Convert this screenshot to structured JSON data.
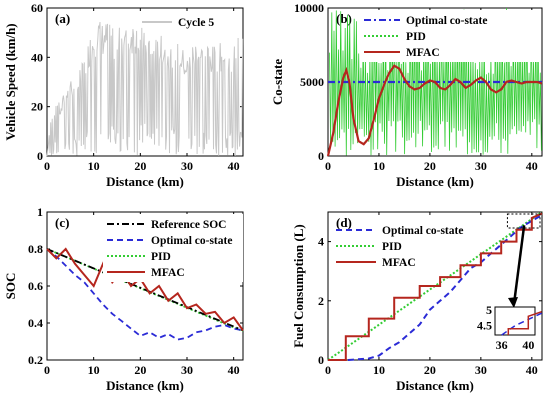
{
  "colors": {
    "speed": "#c8c8c8",
    "opt": "#2b2bd6",
    "pid": "#33cc33",
    "mfac": "#b5261e",
    "ref": "#000000"
  },
  "chart_data": [
    {
      "id": "a",
      "type": "line",
      "panel_label": "(a)",
      "xlabel": "Distance (km)",
      "ylabel": "Vehicle Speed (km/h)",
      "xlim": [
        0,
        42
      ],
      "ylim": [
        0,
        60
      ],
      "xticks": [
        0,
        10,
        20,
        30,
        40
      ],
      "yticks": [
        0,
        20,
        40,
        60
      ],
      "legend_position": "top-right",
      "series": [
        {
          "name": "Cycle 5",
          "color": "#c8c8c8",
          "envelope": [
            [
              0,
              0
            ],
            [
              1,
              18
            ],
            [
              2,
              24
            ],
            [
              3,
              20
            ],
            [
              4,
              30
            ],
            [
              5,
              32
            ],
            [
              6,
              28
            ],
            [
              7,
              35
            ],
            [
              8,
              40
            ],
            [
              9,
              48
            ],
            [
              10,
              52
            ],
            [
              11,
              56
            ],
            [
              12,
              54
            ],
            [
              13,
              55
            ],
            [
              14,
              52
            ],
            [
              15,
              50
            ],
            [
              16,
              54
            ],
            [
              17,
              52
            ],
            [
              18,
              55
            ],
            [
              19,
              55
            ],
            [
              20,
              52
            ],
            [
              21,
              54
            ],
            [
              22,
              50
            ],
            [
              23,
              48
            ],
            [
              24,
              48
            ],
            [
              25,
              50
            ],
            [
              26,
              46
            ],
            [
              27,
              48
            ],
            [
              28,
              46
            ],
            [
              29,
              44
            ],
            [
              30,
              40
            ],
            [
              31,
              45
            ],
            [
              32,
              48
            ],
            [
              33,
              45
            ],
            [
              34,
              48
            ],
            [
              35,
              44
            ],
            [
              36,
              45
            ],
            [
              37,
              46
            ],
            [
              38,
              44
            ],
            [
              39,
              42
            ],
            [
              40,
              44
            ],
            [
              41,
              52
            ],
            [
              42,
              50
            ]
          ]
        }
      ]
    },
    {
      "id": "b",
      "type": "line",
      "panel_label": "(b)",
      "xlabel": "Distance (km)",
      "ylabel": "Co-state",
      "xlim": [
        0,
        42
      ],
      "ylim": [
        0,
        10000
      ],
      "xticks": [
        0,
        10,
        20,
        30,
        40
      ],
      "yticks": [
        0,
        5000,
        10000
      ],
      "legend_position": "top-right",
      "series": [
        {
          "name": "Optimal co-state",
          "color": "#2b2bd6",
          "style": "dash-dot",
          "x": [
            0,
            42
          ],
          "y": [
            5000,
            5000
          ]
        },
        {
          "name": "PID",
          "color": "#33cc33",
          "style": "dotted",
          "oscillates_between": [
            0,
            10000
          ]
        },
        {
          "name": "MFAC",
          "color": "#b5261e",
          "style": "solid",
          "x": [
            0,
            1,
            2,
            3,
            3.6,
            4.2,
            5,
            6,
            7,
            8,
            9,
            10,
            11,
            12,
            13,
            14,
            15,
            16,
            17,
            18,
            19,
            20,
            21,
            22,
            23,
            24,
            25,
            26,
            27,
            28,
            29,
            30,
            31,
            32,
            33,
            34,
            35,
            36,
            37,
            38,
            39,
            40,
            41,
            42
          ],
          "y": [
            0,
            1500,
            3600,
            5300,
            5800,
            5000,
            2500,
            1000,
            800,
            1200,
            2500,
            3900,
            4800,
            5600,
            6100,
            5900,
            5200,
            4700,
            4500,
            4600,
            4900,
            5100,
            5000,
            4600,
            4500,
            4800,
            5200,
            5000,
            4600,
            4800,
            5100,
            5300,
            5000,
            4500,
            4300,
            4500,
            5000,
            5100,
            5000,
            4900,
            5000,
            5000,
            5000,
            4900
          ]
        }
      ]
    },
    {
      "id": "c",
      "type": "line",
      "panel_label": "(c)",
      "xlabel": "Distance (km)",
      "ylabel": "SOC",
      "xlim": [
        0,
        42
      ],
      "ylim": [
        0.2,
        1.0
      ],
      "xticks": [
        0,
        10,
        20,
        30,
        40
      ],
      "yticks": [
        0.2,
        0.4,
        0.6,
        0.8,
        1.0
      ],
      "ytick_labels": [
        "0.2",
        "0.4",
        "0.6",
        "0.8",
        "1"
      ],
      "legend_position": "top-right",
      "series": [
        {
          "name": "Reference SOC",
          "color": "#000000",
          "style": "dash-dot",
          "x": [
            0,
            42
          ],
          "y": [
            0.8,
            0.36
          ]
        },
        {
          "name": "Optimal co-state",
          "color": "#2b2bd6",
          "style": "dashed",
          "x": [
            0,
            2,
            4,
            6,
            8,
            10,
            12,
            14,
            16,
            18,
            20,
            22,
            24,
            26,
            28,
            30,
            32,
            34,
            36,
            38,
            40,
            42
          ],
          "y": [
            0.8,
            0.76,
            0.71,
            0.66,
            0.62,
            0.56,
            0.5,
            0.45,
            0.41,
            0.37,
            0.33,
            0.35,
            0.32,
            0.34,
            0.31,
            0.32,
            0.35,
            0.36,
            0.38,
            0.39,
            0.37,
            0.36
          ]
        },
        {
          "name": "PID",
          "color": "#33cc33",
          "style": "dotted",
          "x": [
            0,
            42
          ],
          "y": [
            0.8,
            0.355
          ]
        },
        {
          "name": "MFAC",
          "color": "#b5261e",
          "style": "solid",
          "x": [
            0,
            2,
            4,
            6,
            8,
            10,
            12,
            14,
            16,
            18,
            20,
            22,
            24,
            26,
            28,
            30,
            32,
            34,
            36,
            38,
            40,
            42
          ],
          "y": [
            0.8,
            0.75,
            0.8,
            0.72,
            0.66,
            0.6,
            0.72,
            0.62,
            0.68,
            0.6,
            0.64,
            0.56,
            0.6,
            0.52,
            0.56,
            0.48,
            0.5,
            0.45,
            0.46,
            0.4,
            0.43,
            0.36
          ]
        }
      ]
    },
    {
      "id": "d",
      "type": "line",
      "panel_label": "(d)",
      "xlabel": "Distance (km)",
      "ylabel": "Fuel Consumption (L)",
      "xlim": [
        0,
        42
      ],
      "ylim": [
        0,
        5
      ],
      "xticks": [
        0,
        10,
        20,
        30,
        40
      ],
      "yticks": [
        0,
        2,
        4
      ],
      "legend_position": "top-left",
      "series": [
        {
          "name": "Optimal co-state",
          "color": "#2b2bd6",
          "style": "dashed",
          "x": [
            0,
            4,
            8,
            10,
            12,
            14,
            16,
            18,
            20,
            22,
            24,
            26,
            28,
            30,
            32,
            34,
            36,
            38,
            40,
            42
          ],
          "y": [
            0,
            0,
            0.05,
            0.15,
            0.4,
            0.6,
            0.9,
            1.2,
            1.7,
            2.0,
            2.3,
            2.7,
            3.1,
            3.3,
            3.6,
            3.9,
            4.2,
            4.5,
            4.7,
            4.9
          ]
        },
        {
          "name": "PID",
          "color": "#33cc33",
          "style": "dotted",
          "x": [
            0,
            42
          ],
          "y": [
            0,
            5.0
          ]
        },
        {
          "name": "MFAC",
          "color": "#b5261e",
          "style": "solid",
          "x": [
            0,
            3.5,
            3.5,
            8,
            8,
            13,
            13,
            18,
            18,
            22,
            22,
            26,
            26,
            30,
            30,
            34,
            34,
            37,
            37,
            40,
            40,
            42
          ],
          "y": [
            0,
            0,
            0.8,
            0.8,
            1.4,
            1.4,
            2.1,
            2.1,
            2.5,
            2.5,
            2.8,
            2.8,
            3.2,
            3.2,
            3.6,
            3.6,
            4.0,
            4.0,
            4.4,
            4.4,
            4.8,
            4.95
          ]
        }
      ],
      "inset": {
        "xlim": [
          35,
          41
        ],
        "ylim": [
          4.2,
          5.1
        ],
        "xticks": [
          36,
          40
        ],
        "yticks": [
          4.5,
          5
        ],
        "ytick_labels": [
          "4.5",
          "5"
        ]
      }
    }
  ]
}
